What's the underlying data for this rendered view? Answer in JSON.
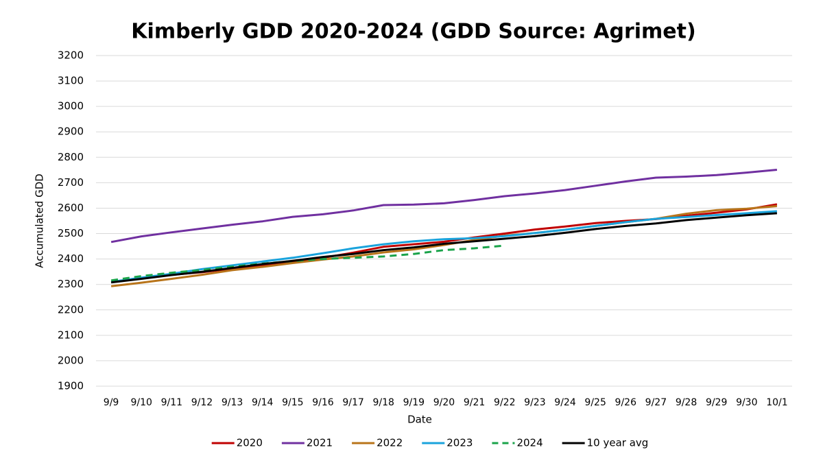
{
  "chart_data": {
    "type": "line",
    "title": "Kimberly GDD 2020-2024 (GDD Source: Agrimet)",
    "xlabel": "Date",
    "ylabel": "Accumulated GDD",
    "categories": [
      "9/9",
      "9/10",
      "9/11",
      "9/12",
      "9/13",
      "9/14",
      "9/15",
      "9/16",
      "9/17",
      "9/18",
      "9/19",
      "9/20",
      "9/21",
      "9/22",
      "9/23",
      "9/24",
      "9/25",
      "9/26",
      "9/27",
      "9/28",
      "9/29",
      "9/30",
      "10/1"
    ],
    "ylim": [
      1900,
      3200
    ],
    "yticks": [
      1900,
      2000,
      2100,
      2200,
      2300,
      2400,
      2500,
      2600,
      2700,
      2800,
      2900,
      3000,
      3100,
      3200
    ],
    "grid": true,
    "legend": "bottom",
    "series": [
      {
        "name": "2020",
        "color": "#c00000",
        "values": [
          2310,
          2325,
          2338,
          2348,
          2362,
          2376,
          2390,
          2405,
          2425,
          2448,
          2458,
          2468,
          2485,
          2500,
          2516,
          2528,
          2541,
          2550,
          2557,
          2570,
          2582,
          2595,
          2615
        ]
      },
      {
        "name": "2021",
        "color": "#7030a0",
        "values": [
          2467,
          2489,
          2505,
          2520,
          2535,
          2548,
          2566,
          2576,
          2591,
          2612,
          2614,
          2619,
          2632,
          2647,
          2658,
          2671,
          2688,
          2705,
          2720,
          2724,
          2730,
          2740,
          2751
        ]
      },
      {
        "name": "2022",
        "color": "#b8741a",
        "values": [
          2293,
          2307,
          2322,
          2338,
          2356,
          2369,
          2384,
          2398,
          2410,
          2426,
          2438,
          2455,
          2475,
          2492,
          2502,
          2515,
          2530,
          2545,
          2558,
          2578,
          2592,
          2598,
          2608
        ]
      },
      {
        "name": "2023",
        "color": "#1aa3dc",
        "values": [
          2310,
          2327,
          2342,
          2360,
          2375,
          2390,
          2405,
          2423,
          2442,
          2458,
          2470,
          2478,
          2482,
          2490,
          2502,
          2515,
          2530,
          2545,
          2558,
          2565,
          2573,
          2580,
          2588
        ]
      },
      {
        "name": "2024",
        "color": "#1aa34a",
        "dashed": true,
        "values": [
          2316,
          2333,
          2346,
          2357,
          2370,
          2382,
          2392,
          2400,
          2405,
          2410,
          2420,
          2435,
          2442,
          2453,
          null,
          null,
          null,
          null,
          null,
          null,
          null,
          null,
          null
        ]
      },
      {
        "name": "10 year avg",
        "color": "#000000",
        "values": [
          2308,
          2322,
          2337,
          2350,
          2365,
          2380,
          2393,
          2408,
          2420,
          2435,
          2446,
          2460,
          2470,
          2480,
          2490,
          2503,
          2518,
          2530,
          2540,
          2553,
          2563,
          2572,
          2580
        ]
      }
    ]
  }
}
